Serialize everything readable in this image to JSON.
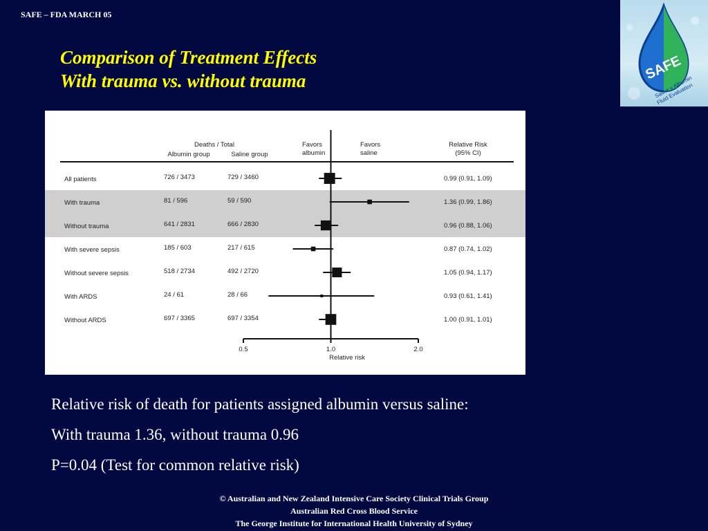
{
  "header_tag": "SAFE – FDA MARCH 05",
  "title": {
    "line1": "Comparison of Treatment Effects",
    "line2": "With trauma vs. without trauma"
  },
  "logo": {
    "wordmark": "SAFE",
    "tagline_line1": "Saline v Albumin",
    "tagline_line2": "Fluid Evaluation",
    "colors": {
      "drop_blue": "#1f6fd0",
      "drop_green": "#2fb25a",
      "drop_outline": "#0a3f8f"
    }
  },
  "chart_data": {
    "type": "forest",
    "xlabel": "Relative risk",
    "x_ticks": [
      0.5,
      1.0,
      2.0
    ],
    "x_tick_labels": [
      "0.5",
      "1.0",
      "2.0"
    ],
    "xlim": [
      0.5,
      2.0
    ],
    "x_scale": "log",
    "reference_line": 1.0,
    "headers": {
      "deaths_total": "Deaths / Total",
      "albumin_group": "Albumin group",
      "saline_group": "Saline group",
      "favors_albumin_line1": "Favors",
      "favors_albumin_line2": "albumin",
      "favors_saline_line1": "Favors",
      "favors_saline_line2": "saline",
      "relative_risk_line1": "Relative Risk",
      "relative_risk_line2": "(95% CI)"
    },
    "rows": [
      {
        "label": "All patients",
        "albumin": "726 / 3473",
        "saline": "729 / 3460",
        "rr": 0.99,
        "lo": 0.91,
        "hi": 1.09,
        "rr_text": "0.99 (0.91, 1.09)",
        "highlight": false
      },
      {
        "label": "With trauma",
        "albumin": "81 / 596",
        "saline": "59 / 590",
        "rr": 1.36,
        "lo": 0.99,
        "hi": 1.86,
        "rr_text": "1.36 (0.99, 1.86)",
        "highlight": true
      },
      {
        "label": "Without trauma",
        "albumin": "641 / 2831",
        "saline": "666 / 2830",
        "rr": 0.96,
        "lo": 0.88,
        "hi": 1.06,
        "rr_text": "0.96 (0.88, 1.06)",
        "highlight": true
      },
      {
        "label": "With severe sepsis",
        "albumin": "185 / 603",
        "saline": "217 / 615",
        "rr": 0.87,
        "lo": 0.74,
        "hi": 1.02,
        "rr_text": "0.87 (0.74, 1.02)",
        "highlight": false
      },
      {
        "label": "Without severe sepsis",
        "albumin": "518 / 2734",
        "saline": "492 / 2720",
        "rr": 1.05,
        "lo": 0.94,
        "hi": 1.17,
        "rr_text": "1.05 (0.94, 1.17)",
        "highlight": false
      },
      {
        "label": "With ARDS",
        "albumin": "24 / 61",
        "saline": "28 / 66",
        "rr": 0.93,
        "lo": 0.61,
        "hi": 1.41,
        "rr_text": "0.93 (0.61, 1.41)",
        "highlight": false
      },
      {
        "label": "Without ARDS",
        "albumin": "697 / 3365",
        "saline": "697 / 3354",
        "rr": 1.0,
        "lo": 0.91,
        "hi": 1.01,
        "rr_text": "1.00 (0.91, 1.01)",
        "highlight": false
      }
    ]
  },
  "caption": {
    "line1": "Relative risk of death for patients assigned albumin versus saline:",
    "line2": "With trauma 1.36, without trauma 0.96",
    "line3": "P=0.04 (Test for common relative risk)"
  },
  "footer": {
    "line1": "© Australian and New Zealand Intensive Care Society Clinical Trials Group",
    "line2": "Australian Red Cross Blood Service",
    "line3": "The George Institute for International Health University of Sydney"
  },
  "colors": {
    "background": "#020840",
    "title": "#FFFF00",
    "text": "#FFFFFF",
    "highlight_band": "#cfcfcf"
  }
}
